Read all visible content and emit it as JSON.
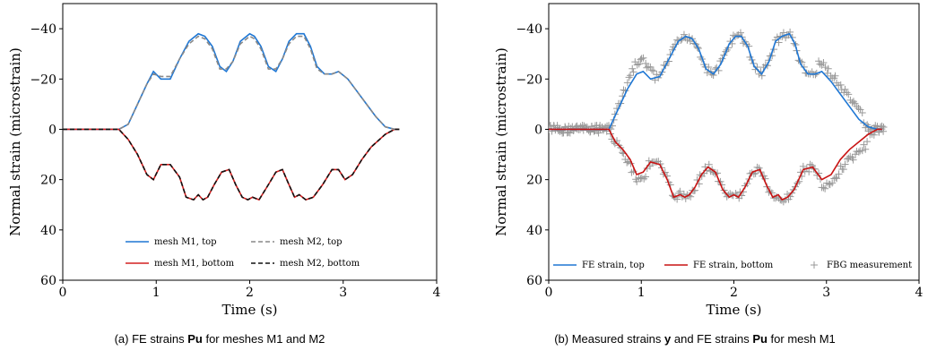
{
  "chart_data": [
    {
      "type": "line",
      "caption_prefix": "(a) FE strains ",
      "caption_bold": "Pu",
      "caption_suffix": " for meshes M1 and M2",
      "xlabel": "Time (s)",
      "ylabel": "Normal strain (microstrain)",
      "xlim": [
        0,
        4
      ],
      "ylim": [
        60,
        -50
      ],
      "y_inverted": true,
      "xticks": [
        0,
        1,
        2,
        3,
        4
      ],
      "xtick_labels": [
        "0",
        "1",
        "2",
        "3",
        "4"
      ],
      "yticks": [
        -40,
        -20,
        0,
        20,
        40,
        60
      ],
      "ytick_labels": [
        "−40",
        "−20",
        "0",
        "20",
        "40",
        "60"
      ],
      "legend_position": "bottom-center",
      "series": [
        {
          "name": "mesh M1, top",
          "color": "#1f77d4",
          "style": "solid",
          "x": [
            0,
            0.6,
            0.7,
            0.8,
            0.9,
            0.97,
            1.05,
            1.15,
            1.25,
            1.35,
            1.45,
            1.52,
            1.6,
            1.68,
            1.75,
            1.82,
            1.9,
            2.0,
            2.05,
            2.12,
            2.2,
            2.28,
            2.35,
            2.42,
            2.5,
            2.58,
            2.65,
            2.72,
            2.8,
            2.88,
            2.95,
            3.05,
            3.15,
            3.25,
            3.35,
            3.45,
            3.55,
            3.6
          ],
          "y": [
            0,
            0,
            -2,
            -10,
            -18,
            -23,
            -20,
            -20,
            -28,
            -35,
            -38,
            -37,
            -33,
            -25,
            -23,
            -27,
            -35,
            -38,
            -37,
            -33,
            -25,
            -23,
            -28,
            -35,
            -38,
            -38,
            -33,
            -25,
            -22,
            -22,
            -23,
            -20,
            -15,
            -10,
            -5,
            -1,
            0,
            0
          ]
        },
        {
          "name": "mesh M1, bottom",
          "color": "#d42020",
          "style": "solid",
          "x": [
            0,
            0.6,
            0.7,
            0.8,
            0.9,
            0.97,
            1.05,
            1.15,
            1.25,
            1.32,
            1.4,
            1.45,
            1.5,
            1.55,
            1.62,
            1.7,
            1.78,
            1.85,
            1.92,
            1.98,
            2.03,
            2.1,
            2.2,
            2.28,
            2.35,
            2.42,
            2.48,
            2.53,
            2.6,
            2.68,
            2.78,
            2.88,
            2.95,
            3.02,
            3.1,
            3.2,
            3.3,
            3.45,
            3.55,
            3.6
          ],
          "y": [
            0,
            0,
            4,
            10,
            18,
            20,
            14,
            14,
            19,
            27,
            28,
            26,
            28,
            27,
            22,
            17,
            16,
            22,
            27,
            28,
            27,
            28,
            22,
            17,
            16,
            22,
            27,
            26,
            28,
            27,
            22,
            16,
            16,
            20,
            18,
            12,
            7,
            2,
            0,
            0
          ]
        },
        {
          "name": "mesh M2, top",
          "color": "#888888",
          "style": "dashed",
          "x": [
            0,
            0.6,
            0.7,
            0.8,
            0.9,
            0.97,
            1.05,
            1.15,
            1.25,
            1.35,
            1.45,
            1.52,
            1.6,
            1.68,
            1.75,
            1.82,
            1.9,
            2.0,
            2.05,
            2.12,
            2.2,
            2.28,
            2.35,
            2.42,
            2.5,
            2.58,
            2.65,
            2.72,
            2.8,
            2.88,
            2.95,
            3.05,
            3.15,
            3.25,
            3.35,
            3.45,
            3.55,
            3.6
          ],
          "y": [
            0,
            0,
            -2,
            -10,
            -18,
            -22,
            -21,
            -21,
            -28,
            -34,
            -37,
            -36,
            -32,
            -24,
            -24,
            -27,
            -34,
            -37,
            -36,
            -32,
            -24,
            -24,
            -28,
            -34,
            -37,
            -37,
            -32,
            -24,
            -22,
            -22,
            -23,
            -20,
            -15,
            -10,
            -5,
            -1,
            0,
            0
          ]
        },
        {
          "name": "mesh M2, bottom",
          "color": "#111111",
          "style": "dashed",
          "x": [
            0,
            0.6,
            0.7,
            0.8,
            0.9,
            0.97,
            1.05,
            1.15,
            1.25,
            1.32,
            1.4,
            1.45,
            1.5,
            1.55,
            1.62,
            1.7,
            1.78,
            1.85,
            1.92,
            1.98,
            2.03,
            2.1,
            2.2,
            2.28,
            2.35,
            2.42,
            2.48,
            2.53,
            2.6,
            2.68,
            2.78,
            2.88,
            2.95,
            3.02,
            3.1,
            3.2,
            3.3,
            3.45,
            3.55,
            3.6
          ],
          "y": [
            0,
            0,
            4,
            10,
            18,
            20,
            14,
            14,
            19,
            27,
            28,
            26,
            28,
            27,
            22,
            17,
            16,
            22,
            27,
            28,
            27,
            28,
            22,
            17,
            16,
            22,
            27,
            26,
            28,
            27,
            22,
            16,
            16,
            20,
            18,
            12,
            7,
            2,
            0,
            0
          ]
        }
      ]
    },
    {
      "type": "line",
      "caption_prefix": "(b) Measured strains ",
      "caption_bold": "y",
      "caption_mid": " and FE strains ",
      "caption_bold2": "Pu",
      "caption_suffix": " for mesh M1",
      "xlabel": "Time (s)",
      "ylabel": "Normal strain (microstrain)",
      "xlim": [
        0,
        4
      ],
      "ylim": [
        60,
        -50
      ],
      "y_inverted": true,
      "xticks": [
        0,
        1,
        2,
        3,
        4
      ],
      "xtick_labels": [
        "0",
        "1",
        "2",
        "3",
        "4"
      ],
      "yticks": [
        -40,
        -20,
        0,
        20,
        40,
        60
      ],
      "ytick_labels": [
        "−40",
        "−20",
        "0",
        "20",
        "40",
        "60"
      ],
      "legend_position": "bottom",
      "series": [
        {
          "name": "FE strain, top",
          "color": "#1f77d4",
          "style": "solid",
          "x": [
            0,
            0.65,
            0.75,
            0.85,
            0.95,
            1.02,
            1.1,
            1.2,
            1.3,
            1.4,
            1.48,
            1.55,
            1.62,
            1.7,
            1.78,
            1.86,
            1.95,
            2.02,
            2.08,
            2.15,
            2.22,
            2.3,
            2.38,
            2.45,
            2.52,
            2.6,
            2.66,
            2.72,
            2.8,
            2.88,
            2.95,
            3.05,
            3.15,
            3.25,
            3.35,
            3.45,
            3.55,
            3.6
          ],
          "y": [
            0,
            0,
            -8,
            -16,
            -22,
            -23,
            -20,
            -21,
            -28,
            -35,
            -37,
            -36,
            -32,
            -24,
            -22,
            -26,
            -34,
            -37,
            -37,
            -33,
            -25,
            -22,
            -27,
            -35,
            -37,
            -38,
            -34,
            -26,
            -22,
            -22,
            -23,
            -19,
            -14,
            -9,
            -4,
            -1,
            0,
            0
          ]
        },
        {
          "name": "FE strain, bottom",
          "color": "#c81414",
          "style": "solid",
          "x": [
            0,
            0.65,
            0.72,
            0.8,
            0.88,
            0.95,
            1.02,
            1.1,
            1.2,
            1.28,
            1.35,
            1.42,
            1.47,
            1.52,
            1.58,
            1.65,
            1.72,
            1.8,
            1.88,
            1.95,
            2.0,
            2.05,
            2.12,
            2.2,
            2.28,
            2.35,
            2.42,
            2.48,
            2.52,
            2.58,
            2.65,
            2.75,
            2.85,
            2.95,
            3.05,
            3.15,
            3.25,
            3.35,
            3.45,
            3.55,
            3.6
          ],
          "y": [
            0,
            0,
            5,
            8,
            12,
            18,
            17,
            13,
            14,
            20,
            27,
            26,
            27,
            26,
            23,
            18,
            15,
            17,
            24,
            27,
            26,
            27,
            23,
            17,
            16,
            22,
            27,
            26,
            28,
            27,
            24,
            16,
            15,
            20,
            18,
            12,
            8,
            5,
            2,
            0,
            0
          ]
        }
      ],
      "measurement": {
        "name": "FBG measurement",
        "color": "#999999",
        "marker": "plus"
      }
    }
  ]
}
